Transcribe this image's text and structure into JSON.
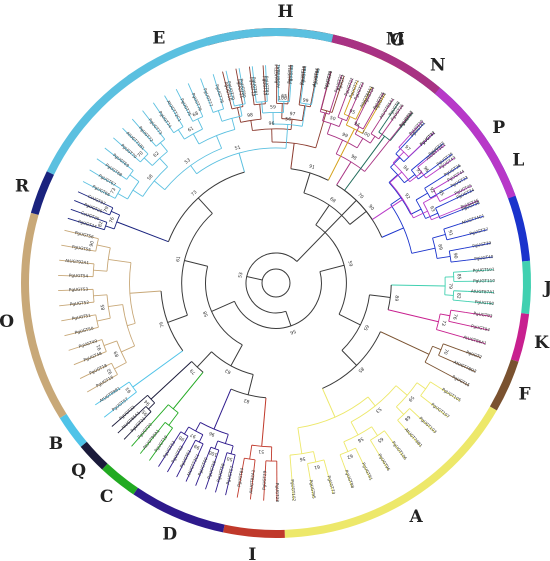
{
  "groups": [
    {
      "label": "H",
      "color": "#8B3A2E",
      "leaves": [
        "PgUGT10",
        "PgUGT11",
        "PgUGT12",
        "PgUGT13",
        "PgUGT14",
        "PgUGT15",
        "PgUGT16",
        "AtUGT96",
        "PgUGT6",
        "PgUGT7"
      ]
    },
    {
      "label": "M",
      "color": "#D4A017",
      "leaves": [
        "PgUGT71",
        "AtUGT84A1",
        "PgUGT74"
      ]
    },
    {
      "label": "N",
      "color": "#1F6B5A",
      "leaves": [
        "PgUGT8",
        "PgUGT90"
      ]
    },
    {
      "label": "L",
      "color": "#1A33CC",
      "leaves": [
        "PgUGT41",
        "PgUGT42",
        "PgUGT32",
        "PgUGT35",
        "PgUGT36",
        "PgUGT33",
        "PgUGT34",
        "PgUGT38",
        "AtUGT74C1",
        "PgUGT37",
        "PgUGT39",
        "PgUGT40"
      ]
    },
    {
      "label": "J",
      "color": "#40D0B0",
      "leaves": [
        "PgUGT101",
        "PgUGT110",
        "AtUGT87A1",
        "PgUGT90"
      ]
    },
    {
      "label": "K",
      "color": "#C8208F",
      "leaves": [
        "PgUGT93",
        "PgUGT94",
        "AtUGT86A1"
      ]
    },
    {
      "label": "F",
      "color": "#7A5230",
      "leaves": [
        "PgUGT2",
        "AtUGT78D3",
        "PgUGT15"
      ]
    },
    {
      "label": "A",
      "color": "#EDE86A",
      "leaves": [
        "PgUGT105",
        "PgUGT107",
        "PgUGT103",
        "AtUGT79B1",
        "PgUGT106",
        "PgUGT96",
        "PgUGT91",
        "PgUGT98",
        "PgUGT73",
        "PgUGT95",
        "PgUGT102"
      ]
    },
    {
      "label": "I",
      "color": "#C0392B",
      "leaves": [
        "PgUGT28",
        "PgUGT29",
        "AtUGT82A1",
        "PgUGT84"
      ]
    },
    {
      "label": "D",
      "color": "#2E1A8C",
      "leaves": [
        "PgUGT57",
        "PgUGT58",
        "PgUGT59",
        "PgUGT60",
        "AtUGT73C1",
        "PgUGT61",
        "PgUGT62",
        "PgUGT63"
      ]
    },
    {
      "label": "C",
      "color": "#22AA22",
      "leaves": [
        "PgUGT19",
        "AtUGT90A1",
        "PgUGT20"
      ]
    },
    {
      "label": "Q",
      "color": "#1A1A3A",
      "leaves": [
        "PgUGT21",
        "AtUGT85A1",
        "PgUGT22"
      ]
    },
    {
      "label": "B",
      "color": "#4FC3E8",
      "leaves": [
        "PgUGT97",
        "AtUGT89B1"
      ]
    },
    {
      "label": "O",
      "color": "#C8A878",
      "leaves": [
        "PgUGT16",
        "PgUGT18",
        "PgUGT48",
        "PgUGT49",
        "PgUGT50",
        "PgUGT51",
        "PgUGT52",
        "PgUGT53",
        "PgUGT54",
        "AtUGT92A1",
        "PgUGT55",
        "PgUGT56"
      ]
    },
    {
      "label": "R",
      "color": "#1A237E",
      "leaves": [
        "PgUGT24",
        "CsUGT25",
        "PgUGT26",
        "CsUGT97"
      ]
    },
    {
      "label": "E",
      "color": "#5BC0E0",
      "leaves": [
        "PgUGT66",
        "PgUGT67",
        "PgUGT68",
        "PgUGT69",
        "PgUGT70",
        "AtUGT71B1",
        "PgUGT72",
        "PgUGT73",
        "PgUGT74",
        "AtUGT72C1",
        "PgUGT75",
        "PgUGT76",
        "PgUGT77",
        "PgUGT78",
        "PgUGT79",
        "PgUGT80",
        "PgUGT81",
        "PgUGT82",
        "AtUGT88A1",
        "PgUGT83",
        "PgUGT84",
        "PgUGT85"
      ]
    },
    {
      "label": "G",
      "color": "#A83283",
      "leaves": [
        "PgUGT20",
        "PgUGT21",
        "PgUGT22",
        "PgUGT23",
        "PgUGT24",
        "PgUGT25",
        "AtUGT85A1",
        "PgUGT26",
        "PgUGT27"
      ]
    },
    {
      "label": "P",
      "color": "#B838C8",
      "leaves": [
        "PgUGT30",
        "PgUGT31",
        "AtUGT73C1",
        "PgUGT43",
        "PgUGT44",
        "PgUGT45",
        "PgUGT46"
      ]
    }
  ],
  "bootstrap": [
    "100",
    "99",
    "98",
    "97",
    "96",
    "95",
    "94",
    "93",
    "92",
    "91",
    "90",
    "89",
    "85",
    "82",
    "79",
    "76",
    "73",
    "70",
    "68",
    "65",
    "62",
    "61",
    "59",
    "58",
    "56",
    "53",
    "51",
    "50"
  ]
}
